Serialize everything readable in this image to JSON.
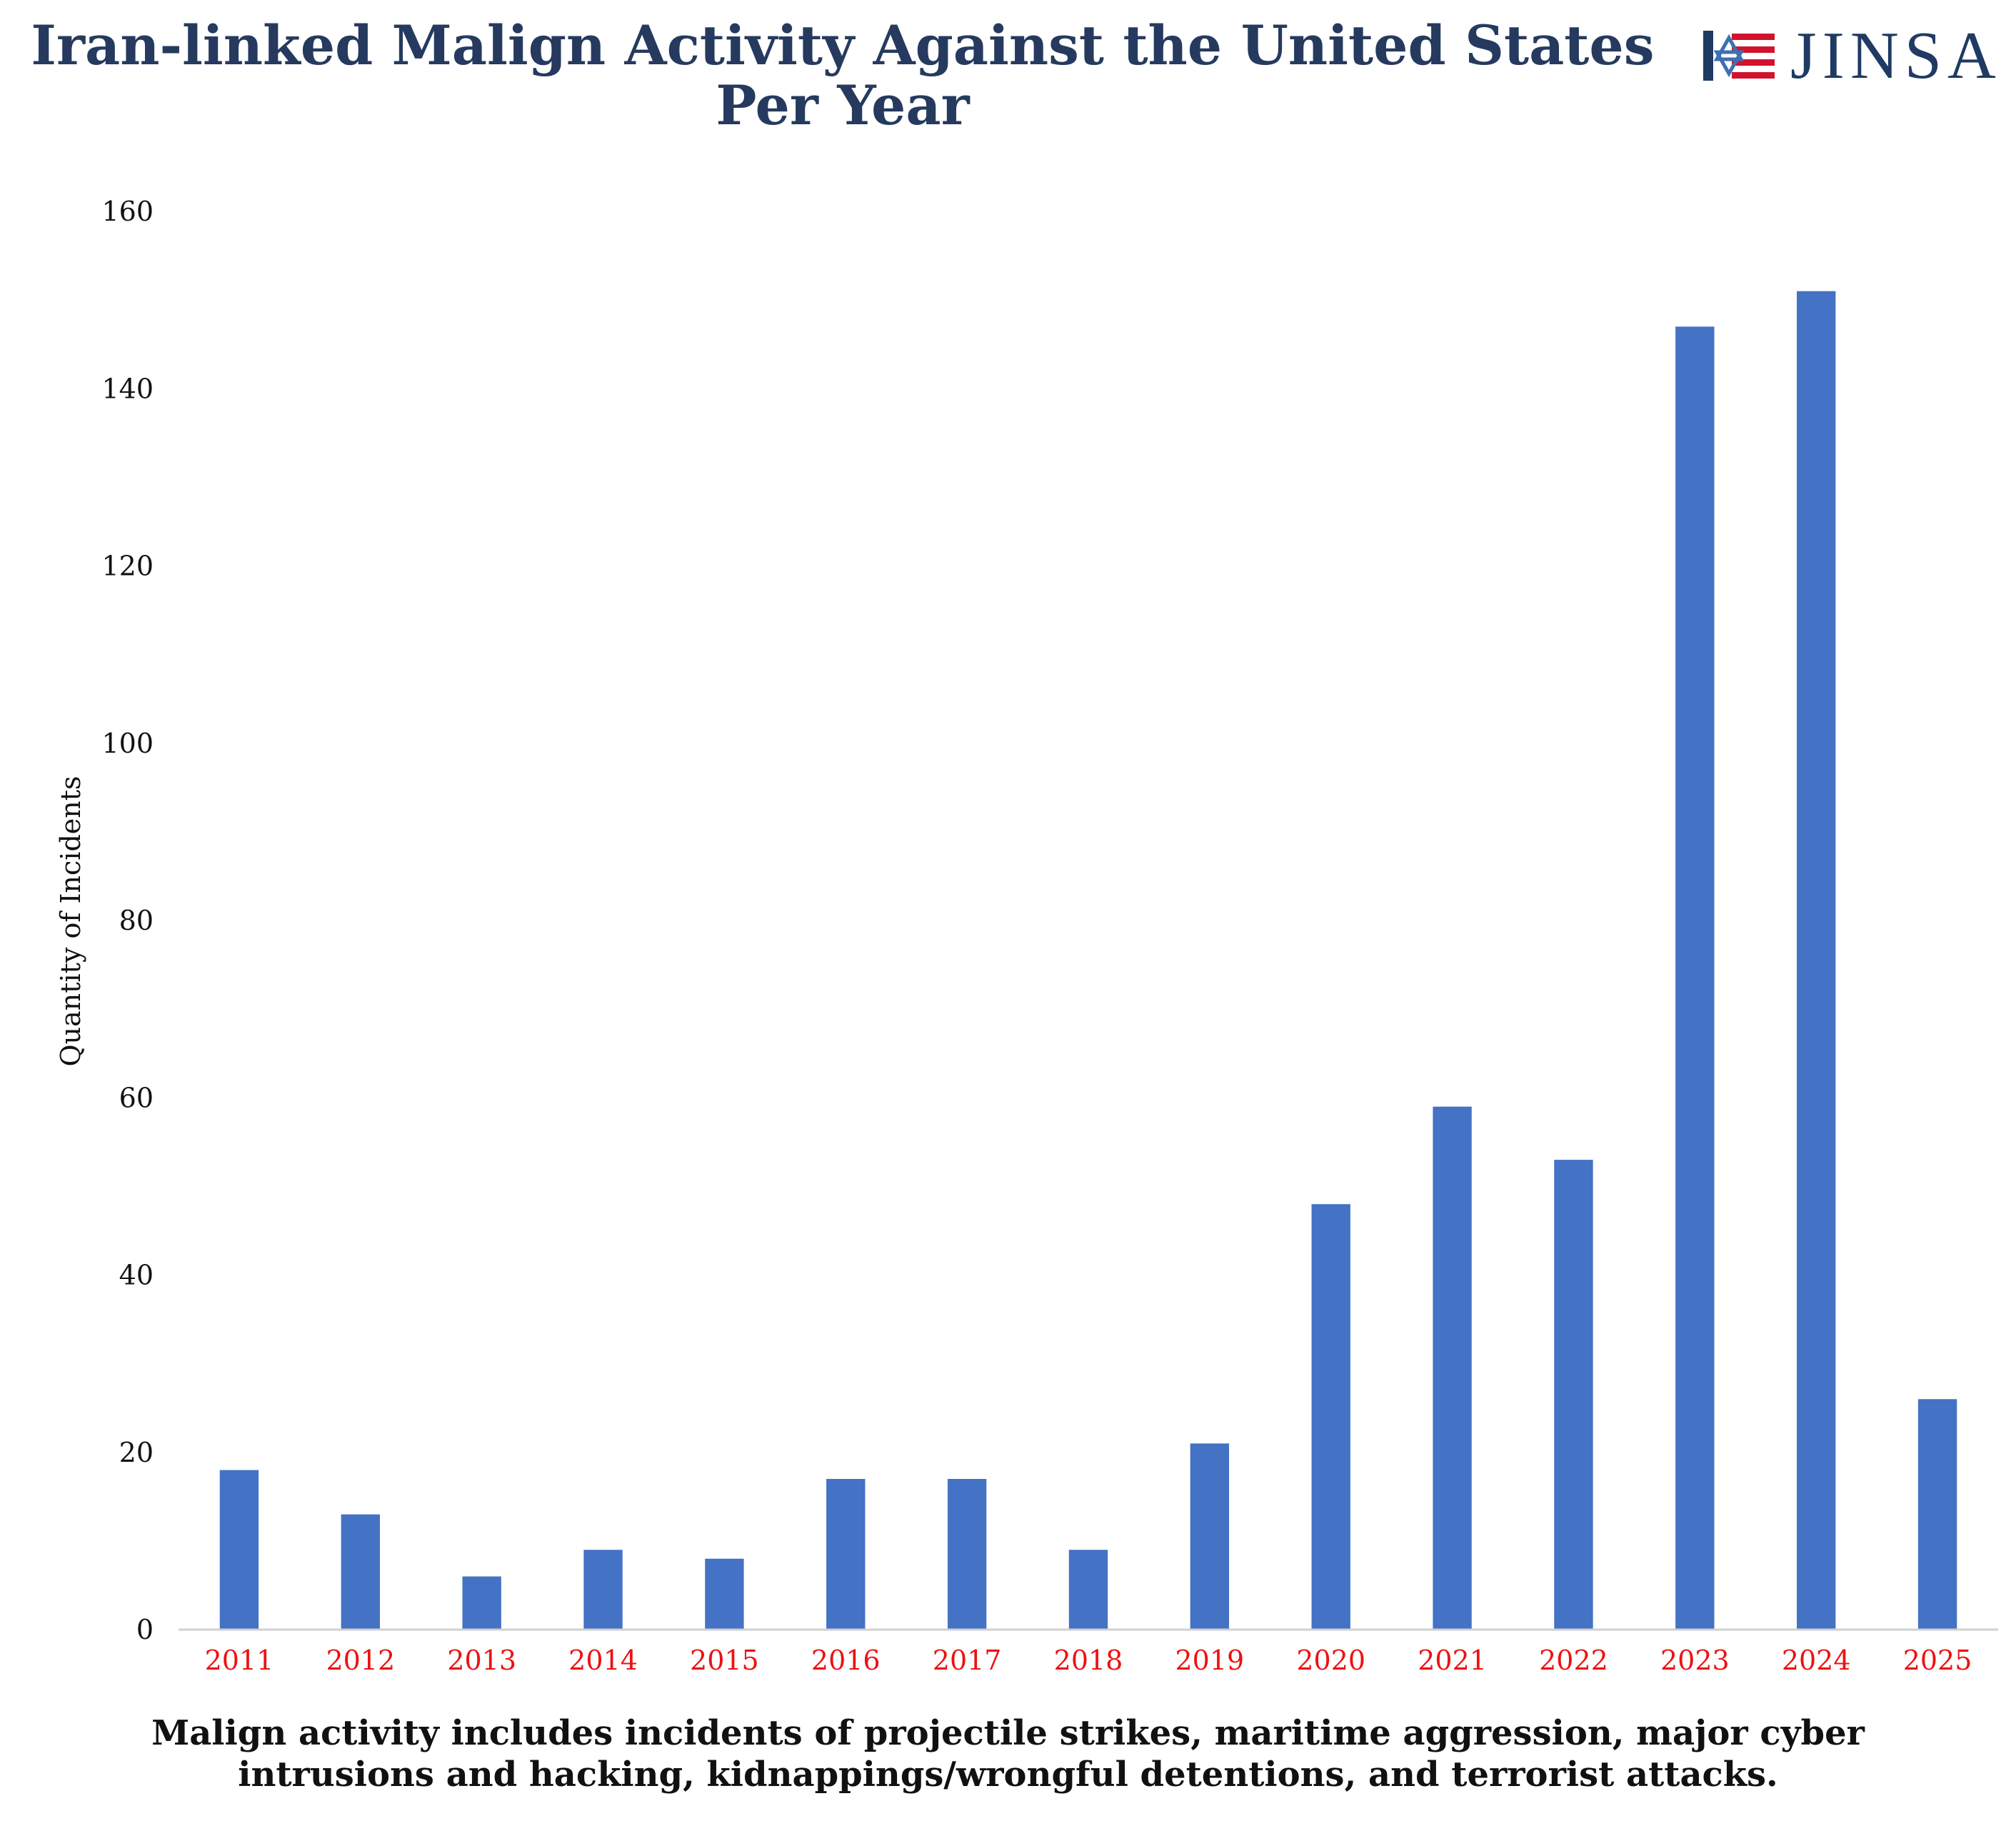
{
  "header": {
    "title_line1": "Iran-linked Malign Activity Against the United States",
    "title_line2": "Per Year",
    "logo_text": "JINSA"
  },
  "caption": {
    "line1": "Malign activity includes incidents of projectile strikes, maritime aggression, major cyber",
    "line2": "intrusions and hacking, kidnappings/wrongful detentions, and terrorist attacks."
  },
  "colors": {
    "bar": "#4472c4",
    "title": "#253a5e",
    "x_tick_labels": "#ee1111",
    "axis_line": "#d0d0d0"
  },
  "chart_data": {
    "type": "bar",
    "title": "Iran-linked Malign Activity Against the United States Per Year",
    "xlabel": "",
    "ylabel": "Quantity of Incidents",
    "categories": [
      "2011",
      "2012",
      "2013",
      "2014",
      "2015",
      "2016",
      "2017",
      "2018",
      "2019",
      "2020",
      "2021",
      "2022",
      "2023",
      "2024",
      "2025"
    ],
    "values": [
      18,
      13,
      6,
      9,
      8,
      17,
      17,
      9,
      21,
      48,
      59,
      53,
      147,
      151,
      26
    ],
    "ylim": [
      0,
      160
    ],
    "yticks": [
      0,
      20,
      40,
      60,
      80,
      100,
      120,
      140,
      160
    ],
    "grid": false,
    "legend": "none"
  }
}
